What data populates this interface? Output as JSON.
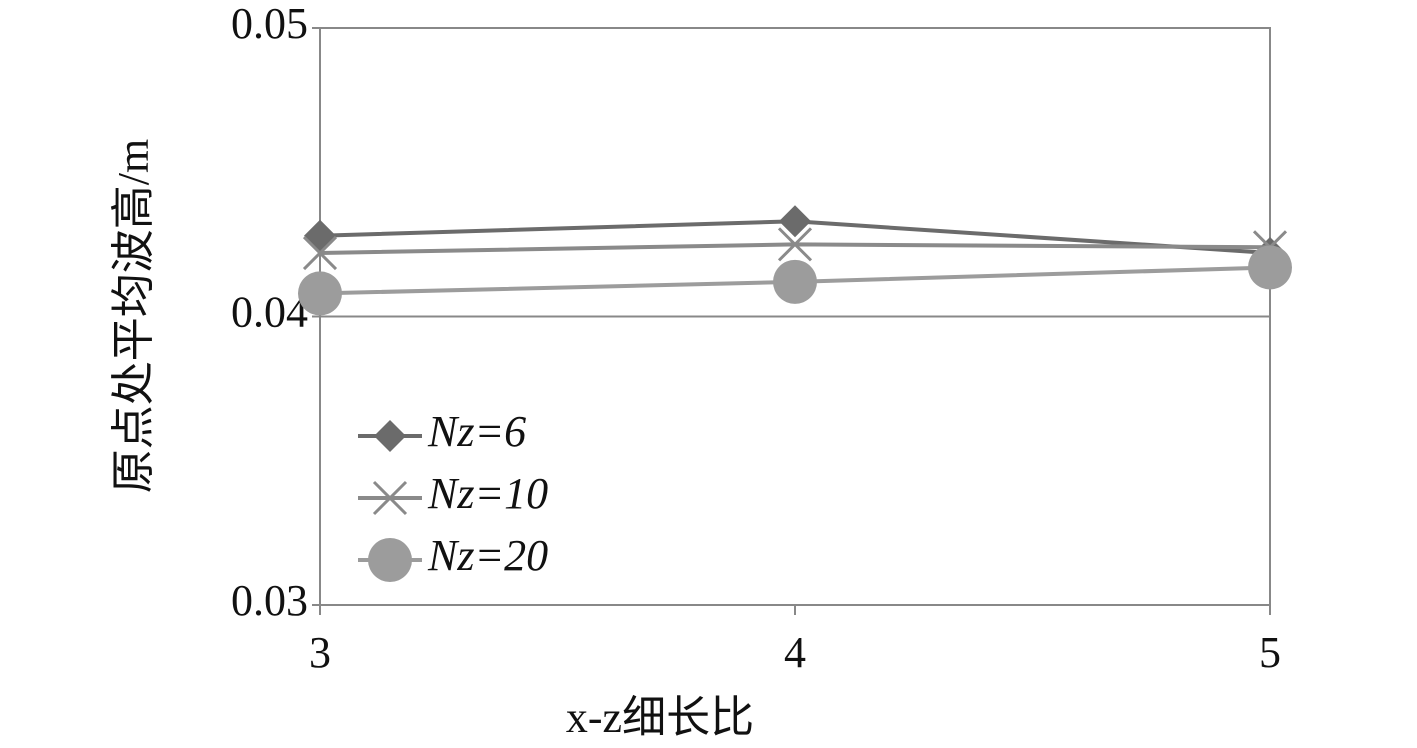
{
  "chart_data": {
    "type": "line",
    "x_label": "x-z细长比",
    "y_label": "原点处平均波高/m",
    "x": [
      3,
      4,
      5
    ],
    "xlim": [
      3,
      5
    ],
    "xticks": [
      3,
      4,
      5
    ],
    "ylim": [
      0.03,
      0.05
    ],
    "yticks": [
      0.03,
      0.04,
      0.05
    ],
    "grid": true,
    "legend": "lower left",
    "series": [
      {
        "name": "Nz=6",
        "color": "#6b6b6b",
        "marker": "diamond",
        "values": [
          0.0428,
          0.0433,
          0.0422
        ]
      },
      {
        "name": "Nz=10",
        "color": "#8a8a8a",
        "marker": "x",
        "values": [
          0.0422,
          0.0425,
          0.0424
        ]
      },
      {
        "name": "Nz=20",
        "color": "#9c9c9c",
        "marker": "circle",
        "values": [
          0.0408,
          0.0412,
          0.0417
        ]
      }
    ]
  }
}
